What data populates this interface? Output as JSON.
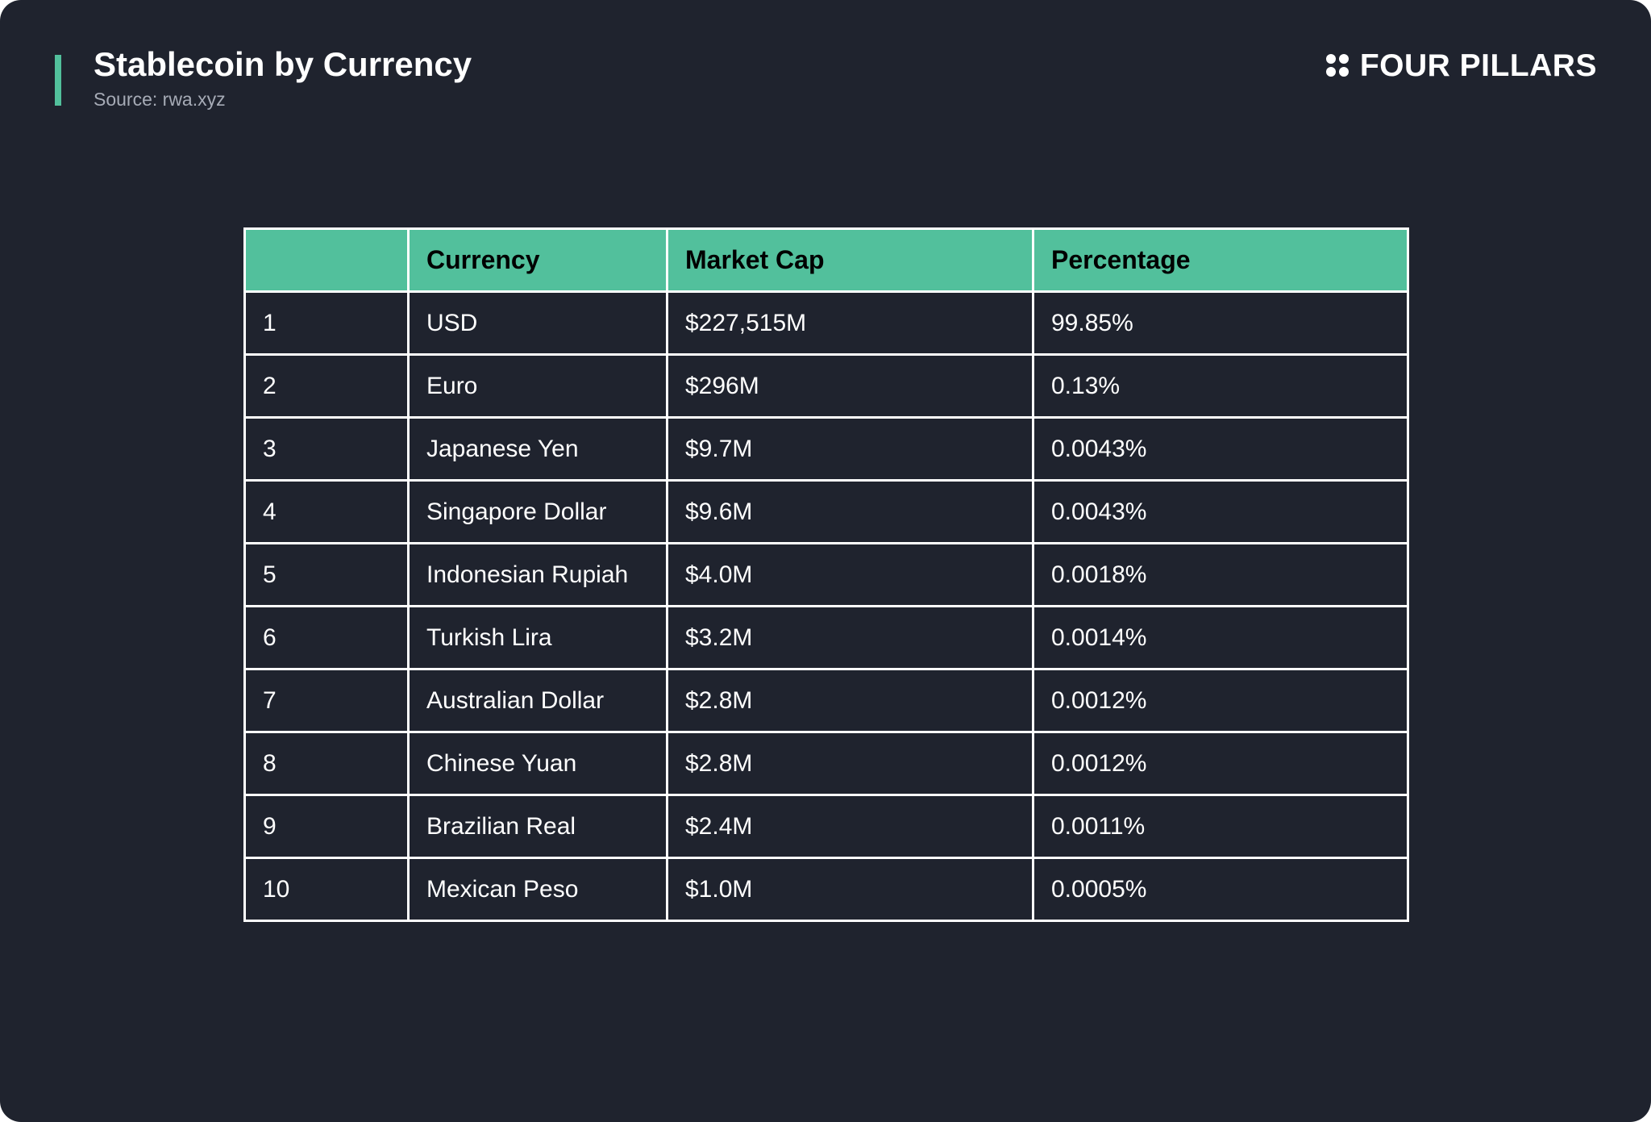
{
  "header": {
    "title": "Stablecoin by Currency",
    "source": "Source: rwa.xyz",
    "brand": "FOUR PILLARS",
    "brand_icon": "four-dots-icon"
  },
  "colors": {
    "background": "#1f232e",
    "accent": "#52c09c",
    "text": "#ffffff",
    "subtitle": "#a6abb6"
  },
  "chart_data": {
    "type": "table",
    "title": "Stablecoin by Currency",
    "columns": [
      "",
      "Currency",
      "Market Cap",
      "Percentage"
    ],
    "rows": [
      [
        "1",
        "USD",
        "$227,515M",
        "99.85%"
      ],
      [
        "2",
        "Euro",
        "$296M",
        "0.13%"
      ],
      [
        "3",
        "Japanese Yen",
        "$9.7M",
        "0.0043%"
      ],
      [
        "4",
        "Singapore Dollar",
        "$9.6M",
        "0.0043%"
      ],
      [
        "5",
        "Indonesian Rupiah",
        "$4.0M",
        "0.0018%"
      ],
      [
        "6",
        "Turkish Lira",
        "$3.2M",
        "0.0014%"
      ],
      [
        "7",
        "Australian Dollar",
        "$2.8M",
        "0.0012%"
      ],
      [
        "8",
        "Chinese Yuan",
        "$2.8M",
        "0.0012%"
      ],
      [
        "9",
        "Brazilian Real",
        "$2.4M",
        "0.0011%"
      ],
      [
        "10",
        "Mexican Peso",
        "$1.0M",
        "0.0005%"
      ]
    ]
  }
}
